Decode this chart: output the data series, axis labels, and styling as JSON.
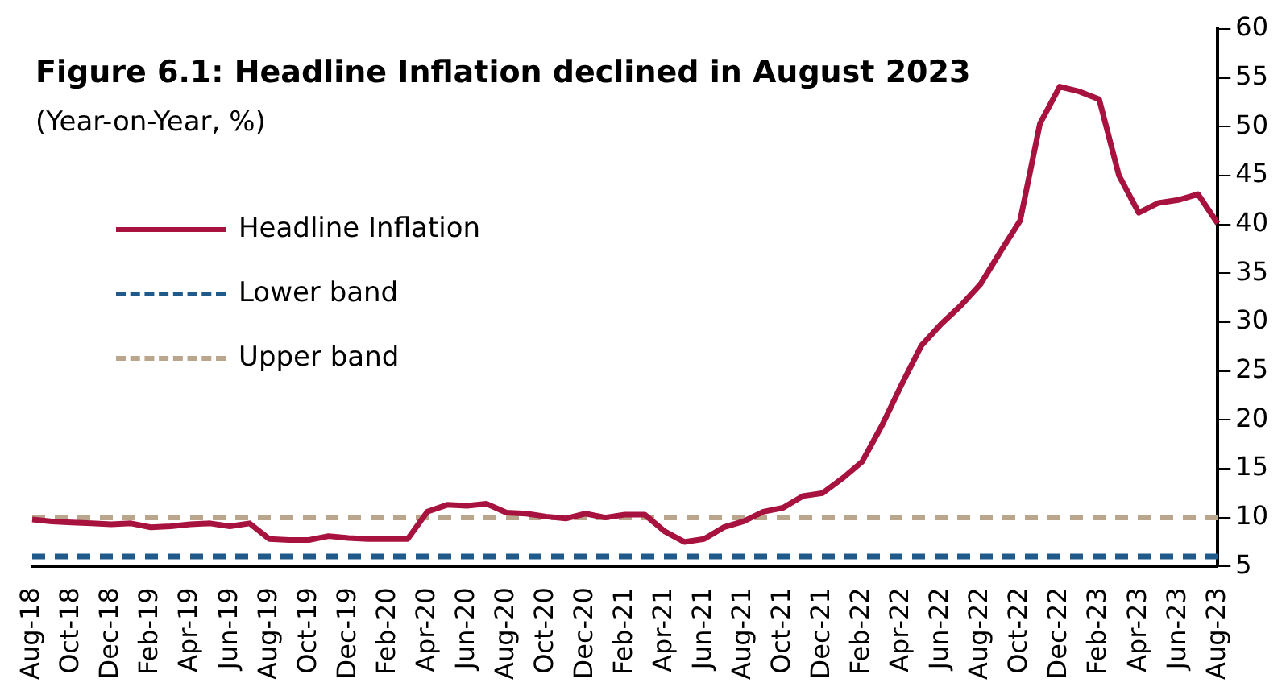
{
  "chart_data": {
    "type": "line",
    "title": "Figure 6.1: Headline Inflation declined in August 2023",
    "subtitle": "(Year-on-Year, %)",
    "categories": [
      "Aug-18",
      null,
      "Oct-18",
      null,
      "Dec-18",
      null,
      "Feb-19",
      null,
      "Apr-19",
      null,
      "Jun-19",
      null,
      "Aug-19",
      null,
      "Oct-19",
      null,
      "Dec-19",
      null,
      "Feb-20",
      null,
      "Apr-20",
      null,
      "Jun-20",
      null,
      "Aug-20",
      null,
      "Oct-20",
      null,
      "Dec-20",
      null,
      "Feb-21",
      null,
      "Apr-21",
      null,
      "Jun-21",
      null,
      "Aug-21",
      null,
      "Oct-21",
      null,
      "Dec-21",
      null,
      "Feb-22",
      null,
      "Apr-22",
      null,
      "Jun-22",
      null,
      "Aug-22",
      null,
      "Oct-22",
      null,
      "Dec-22",
      null,
      "Feb-23",
      null,
      "Apr-23",
      null,
      "Jun-23",
      null,
      "Aug-23"
    ],
    "series": [
      {
        "name": "Headline Inflation",
        "color": "#a8123e",
        "line_style": "solid",
        "values": [
          9.8,
          9.6,
          9.5,
          9.4,
          9.3,
          9.4,
          9.0,
          9.1,
          9.3,
          9.4,
          9.1,
          9.4,
          7.8,
          7.7,
          7.7,
          8.1,
          7.9,
          7.8,
          7.8,
          7.8,
          10.6,
          11.3,
          11.2,
          11.4,
          10.5,
          10.4,
          10.1,
          9.9,
          10.4,
          10.0,
          10.3,
          10.3,
          8.6,
          7.5,
          7.8,
          9.0,
          9.6,
          10.6,
          11.0,
          12.2,
          12.5,
          14.0,
          15.7,
          19.4,
          23.6,
          27.6,
          29.8,
          31.7,
          33.9,
          37.2,
          40.4,
          50.3,
          54.1,
          53.6,
          52.8,
          45.0,
          41.2,
          42.2,
          42.5,
          43.1,
          40.1
        ]
      },
      {
        "name": "Lower band",
        "color": "#1f5a8a",
        "line_style": "dashed",
        "values": [
          6,
          6,
          6,
          6,
          6,
          6,
          6,
          6,
          6,
          6,
          6,
          6,
          6,
          6,
          6,
          6,
          6,
          6,
          6,
          6,
          6,
          6,
          6,
          6,
          6,
          6,
          6,
          6,
          6,
          6,
          6,
          6,
          6,
          6,
          6,
          6,
          6,
          6,
          6,
          6,
          6,
          6,
          6,
          6,
          6,
          6,
          6,
          6,
          6,
          6,
          6,
          6,
          6,
          6,
          6,
          6,
          6,
          6,
          6,
          6,
          6
        ]
      },
      {
        "name": "Upper band",
        "color": "#b9a68c",
        "line_style": "dashed",
        "values": [
          10,
          10,
          10,
          10,
          10,
          10,
          10,
          10,
          10,
          10,
          10,
          10,
          10,
          10,
          10,
          10,
          10,
          10,
          10,
          10,
          10,
          10,
          10,
          10,
          10,
          10,
          10,
          10,
          10,
          10,
          10,
          10,
          10,
          10,
          10,
          10,
          10,
          10,
          10,
          10,
          10,
          10,
          10,
          10,
          10,
          10,
          10,
          10,
          10,
          10,
          10,
          10,
          10,
          10,
          10,
          10,
          10,
          10,
          10,
          10,
          10
        ]
      }
    ],
    "ylim": [
      5,
      60
    ],
    "yticks": [
      5,
      10,
      15,
      20,
      25,
      30,
      35,
      40,
      45,
      50,
      55,
      60
    ],
    "grid": false,
    "legend": "top left",
    "marker": "none"
  }
}
